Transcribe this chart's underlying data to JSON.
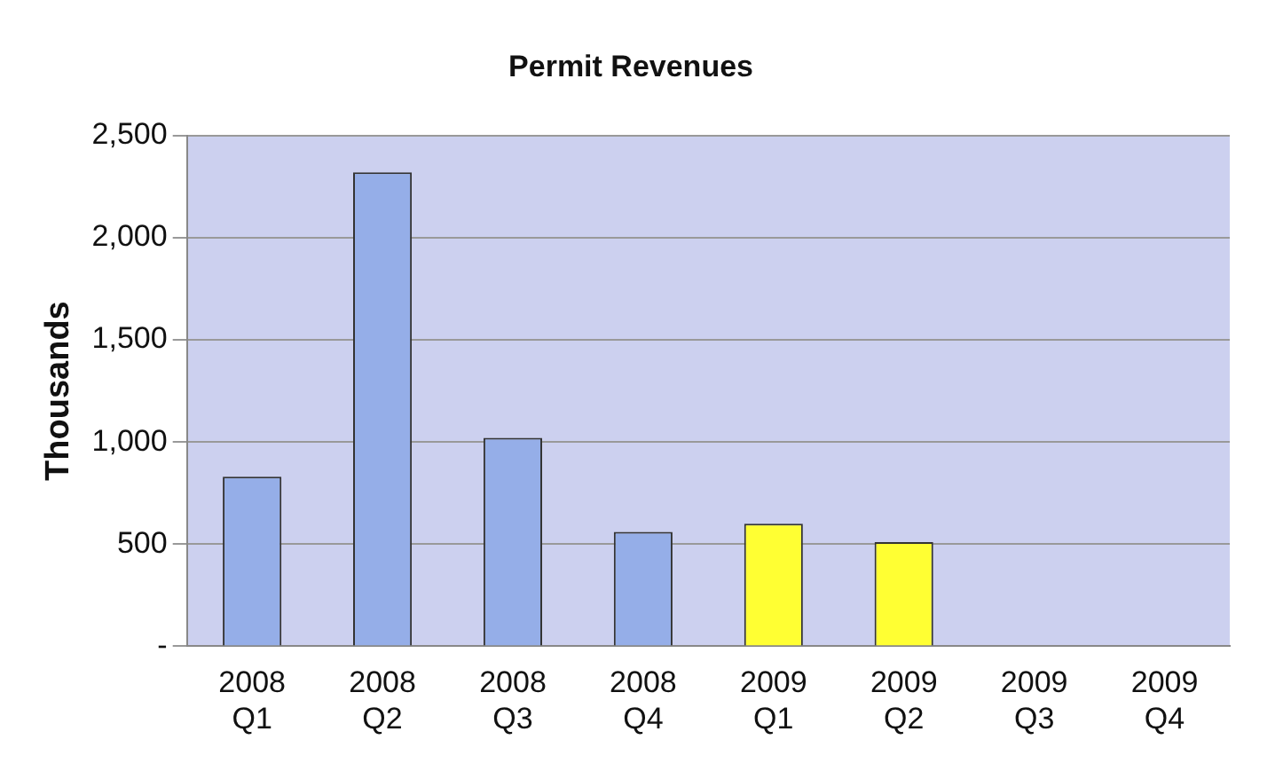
{
  "chart_data": {
    "type": "bar",
    "title": "Permit Revenues",
    "ylabel": "Thousands",
    "categories": [
      "2008 Q1",
      "2008 Q2",
      "2008 Q3",
      "2008 Q4",
      "2009 Q1",
      "2009 Q2",
      "2009 Q3",
      "2009 Q4"
    ],
    "values": [
      830,
      2320,
      1020,
      560,
      600,
      510,
      null,
      null
    ],
    "colors": [
      "#95aee8",
      "#95aee8",
      "#95aee8",
      "#95aee8",
      "#ffff33",
      "#ffff33",
      "#ffff33",
      "#ffff33"
    ],
    "ylim": [
      0,
      2500
    ],
    "yticks": [
      {
        "value": 0,
        "label": "-"
      },
      {
        "value": 500,
        "label": "500"
      },
      {
        "value": 1000,
        "label": "1,000"
      },
      {
        "value": 1500,
        "label": "1,500"
      },
      {
        "value": 2000,
        "label": "2,000"
      },
      {
        "value": 2500,
        "label": "2,500"
      }
    ],
    "grid": "y",
    "legend": false
  }
}
